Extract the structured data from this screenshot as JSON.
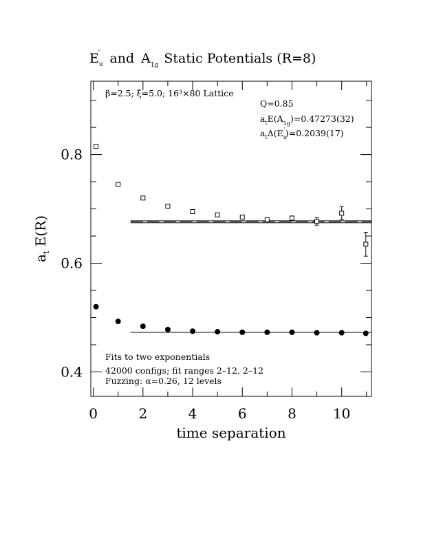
{
  "chart_data": {
    "type": "scatter",
    "title": {
      "E_main": "E",
      "E_sub": "u",
      "E_prime": "′",
      "mid": "and",
      "A_main": "A",
      "A_sub": "1g",
      "rest": "Static Potentials (R=8)"
    },
    "xlabel": "time separation",
    "ylabel": {
      "a": "a",
      "t": "t",
      "rest": "E(R)"
    },
    "xlim": [
      -0.1,
      11.2
    ],
    "ylim": [
      0.355,
      0.935
    ],
    "x_ticks": [
      0,
      2,
      4,
      6,
      8,
      10
    ],
    "x_tick_labels": [
      "0",
      "2",
      "4",
      "6",
      "8",
      "10"
    ],
    "y_ticks": [
      0.4,
      0.6,
      0.8
    ],
    "y_tick_labels": [
      "0.4",
      "0.6",
      "0.8"
    ],
    "annotations": {
      "lattice": "β=2.5; ξ=5.0; 16³×80 Lattice",
      "q": "Q=0.85",
      "a1g_pre": "a",
      "a1g_t": "t",
      "a1g_mid": "E(A",
      "a1g_sub": "1g",
      "a1g_val": ")=0.47273(32)",
      "eu_pre": "a",
      "eu_t": "t",
      "eu_mid": "Δ(E",
      "eu_sub": "u",
      "eu_prime": "′",
      "eu_val": ")=0.2039(17)",
      "fits": "Fits to two exponentials",
      "configs": "42000 configs; fit ranges 2–12, 2–12",
      "fuzz": "Fuzzing: α=0.26, 12 levels"
    },
    "series": [
      {
        "marker": "open-square",
        "x": [
          0,
          1,
          2,
          3,
          4,
          5,
          6,
          7,
          8,
          9,
          10,
          11
        ],
        "y": [
          0.815,
          0.745,
          0.72,
          0.705,
          0.695,
          0.689,
          0.685,
          0.68,
          0.683,
          0.677,
          0.692,
          0.635
        ],
        "err": [
          0.001,
          0.001,
          0.001,
          0.001,
          0.001,
          0.001,
          0.002,
          0.002,
          0.004,
          0.007,
          0.012,
          0.022
        ]
      },
      {
        "marker": "filled-circle",
        "x": [
          0,
          1,
          2,
          3,
          4,
          5,
          6,
          7,
          8,
          9,
          10,
          11
        ],
        "y": [
          0.52,
          0.493,
          0.484,
          0.478,
          0.475,
          0.474,
          0.473,
          0.473,
          0.473,
          0.472,
          0.472,
          0.471
        ],
        "err": [
          0.001,
          0.001,
          0.001,
          0.001,
          0.001,
          0.001,
          0.001,
          0.001,
          0.001,
          0.001,
          0.001,
          0.001
        ]
      }
    ],
    "fit_bands": [
      {
        "style": "solid",
        "x": [
          1.5,
          11.2
        ],
        "center": 0.6763,
        "halfwidth": 0.0018
      },
      {
        "style": "dashed",
        "x": [
          1.5,
          11.2
        ],
        "center": 0.6763,
        "halfwidth": 0.0
      },
      {
        "style": "solid",
        "x": [
          1.5,
          11.2
        ],
        "center": 0.4727,
        "halfwidth": 0.0003
      }
    ]
  }
}
